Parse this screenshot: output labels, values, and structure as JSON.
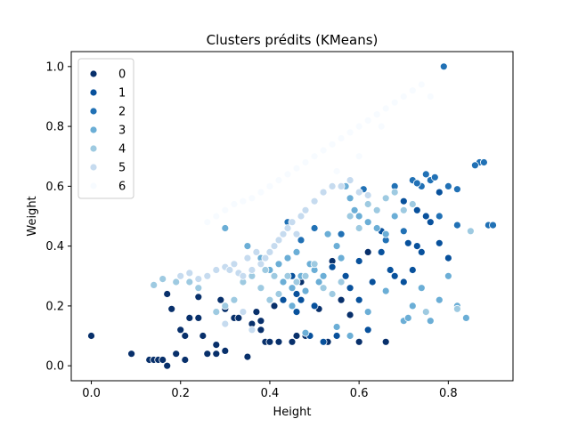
{
  "chart_data": {
    "type": "scatter",
    "title": "Clusters prédits (KMeans)",
    "xlabel": "Height",
    "ylabel": "Weight",
    "xlim": [
      -0.045,
      0.945
    ],
    "ylim": [
      -0.05,
      1.05
    ],
    "xticks": [
      0.0,
      0.2,
      0.4,
      0.6,
      0.8
    ],
    "yticks": [
      0.0,
      0.2,
      0.4,
      0.6,
      0.8,
      1.0
    ],
    "xtick_labels": [
      "0.0",
      "0.2",
      "0.4",
      "0.6",
      "0.8"
    ],
    "ytick_labels": [
      "0.0",
      "0.2",
      "0.4",
      "0.6",
      "0.8",
      "1.0"
    ],
    "grid": false,
    "legend_position": "top-left",
    "series": [
      {
        "name": "0",
        "color": "#08306b",
        "x": [
          0.0,
          0.09,
          0.13,
          0.14,
          0.15,
          0.16,
          0.17,
          0.17,
          0.18,
          0.19,
          0.2,
          0.21,
          0.21,
          0.22,
          0.24,
          0.25,
          0.26,
          0.28,
          0.28,
          0.29,
          0.3,
          0.32,
          0.33,
          0.35,
          0.36,
          0.37,
          0.38,
          0.38,
          0.39,
          0.4,
          0.41,
          0.42,
          0.45,
          0.46,
          0.47,
          0.48,
          0.5,
          0.51,
          0.53,
          0.54,
          0.56,
          0.58,
          0.6,
          0.62,
          0.66,
          0.24,
          0.3,
          0.45
        ],
        "y": [
          0.1,
          0.04,
          0.02,
          0.02,
          0.02,
          0.02,
          0.0,
          0.24,
          0.19,
          0.04,
          0.12,
          0.1,
          0.02,
          0.16,
          0.16,
          0.1,
          0.04,
          0.07,
          0.04,
          0.22,
          0.19,
          0.16,
          0.16,
          0.03,
          0.14,
          0.18,
          0.15,
          0.12,
          0.08,
          0.08,
          0.2,
          0.08,
          0.08,
          0.1,
          0.28,
          0.1,
          0.32,
          0.19,
          0.08,
          0.35,
          0.22,
          0.17,
          0.08,
          0.38,
          0.08,
          0.23,
          0.05,
          0.26
        ]
      },
      {
        "name": "1",
        "color": "#08519c",
        "x": [
          0.43,
          0.45,
          0.46,
          0.47,
          0.49,
          0.5,
          0.52,
          0.55,
          0.57,
          0.58,
          0.6,
          0.62,
          0.63,
          0.65,
          0.67,
          0.68,
          0.7,
          0.72,
          0.73,
          0.74,
          0.75,
          0.76,
          0.78,
          0.8,
          0.52,
          0.6,
          0.65,
          0.7,
          0.74,
          0.78,
          0.46,
          0.54,
          0.71,
          0.73
        ],
        "y": [
          0.22,
          0.3,
          0.24,
          0.22,
          0.1,
          0.2,
          0.08,
          0.1,
          0.3,
          0.26,
          0.35,
          0.12,
          0.28,
          0.38,
          0.32,
          0.3,
          0.28,
          0.32,
          0.4,
          0.38,
          0.5,
          0.48,
          0.41,
          0.36,
          0.3,
          0.22,
          0.45,
          0.55,
          0.6,
          0.58,
          0.18,
          0.33,
          0.41,
          0.52
        ]
      },
      {
        "name": "2",
        "color": "#2171b5",
        "x": [
          0.79,
          0.72,
          0.74,
          0.75,
          0.76,
          0.77,
          0.8,
          0.82,
          0.86,
          0.87,
          0.88,
          0.89,
          0.9,
          0.86,
          0.82,
          0.78,
          0.7,
          0.66,
          0.62,
          0.56,
          0.5,
          0.47,
          0.44,
          0.61,
          0.68,
          0.73
        ],
        "y": [
          1.0,
          0.62,
          0.6,
          0.64,
          0.62,
          0.63,
          0.6,
          0.59,
          0.67,
          0.68,
          0.68,
          0.47,
          0.47,
          0.67,
          0.47,
          0.5,
          0.45,
          0.42,
          0.54,
          0.44,
          0.46,
          0.42,
          0.48,
          0.59,
          0.6,
          0.61
        ]
      },
      {
        "name": "3",
        "color": "#6baed6",
        "x": [
          0.3,
          0.35,
          0.38,
          0.4,
          0.42,
          0.43,
          0.44,
          0.45,
          0.46,
          0.47,
          0.48,
          0.49,
          0.5,
          0.51,
          0.52,
          0.53,
          0.55,
          0.56,
          0.57,
          0.58,
          0.59,
          0.6,
          0.62,
          0.64,
          0.66,
          0.68,
          0.7,
          0.71,
          0.72,
          0.74,
          0.76,
          0.78,
          0.8,
          0.82,
          0.84,
          0.58,
          0.62,
          0.66,
          0.55,
          0.48,
          0.45
        ],
        "y": [
          0.46,
          0.4,
          0.36,
          0.32,
          0.34,
          0.28,
          0.36,
          0.26,
          0.38,
          0.3,
          0.25,
          0.34,
          0.32,
          0.28,
          0.3,
          0.44,
          0.4,
          0.36,
          0.6,
          0.56,
          0.52,
          0.5,
          0.48,
          0.46,
          0.44,
          0.5,
          0.15,
          0.16,
          0.2,
          0.26,
          0.15,
          0.22,
          0.3,
          0.2,
          0.16,
          0.1,
          0.18,
          0.25,
          0.13,
          0.11,
          0.2
        ]
      },
      {
        "name": "4",
        "color": "#9ecae1",
        "x": [
          0.14,
          0.16,
          0.19,
          0.2,
          0.22,
          0.24,
          0.26,
          0.28,
          0.3,
          0.32,
          0.34,
          0.36,
          0.38,
          0.39,
          0.4,
          0.41,
          0.42,
          0.44,
          0.46,
          0.48,
          0.5,
          0.52,
          0.54,
          0.56,
          0.58,
          0.6,
          0.62,
          0.64,
          0.66,
          0.68,
          0.7,
          0.72,
          0.75,
          0.82,
          0.85
        ],
        "y": [
          0.27,
          0.29,
          0.28,
          0.3,
          0.28,
          0.26,
          0.3,
          0.18,
          0.2,
          0.22,
          0.28,
          0.3,
          0.26,
          0.32,
          0.22,
          0.3,
          0.24,
          0.3,
          0.28,
          0.3,
          0.34,
          0.26,
          0.24,
          0.28,
          0.5,
          0.46,
          0.54,
          0.52,
          0.56,
          0.58,
          0.52,
          0.54,
          0.18,
          0.19,
          0.45
        ]
      },
      {
        "name": "5",
        "color": "#c6dbef",
        "x": [
          0.2,
          0.22,
          0.24,
          0.26,
          0.28,
          0.3,
          0.31,
          0.32,
          0.33,
          0.34,
          0.35,
          0.36,
          0.37,
          0.38,
          0.39,
          0.4,
          0.41,
          0.42,
          0.43,
          0.44,
          0.45,
          0.46,
          0.47,
          0.48,
          0.5,
          0.52,
          0.54,
          0.56,
          0.58,
          0.6,
          0.62,
          0.36,
          0.34,
          0.3
        ],
        "y": [
          0.3,
          0.31,
          0.29,
          0.3,
          0.32,
          0.33,
          0.32,
          0.34,
          0.31,
          0.3,
          0.36,
          0.32,
          0.38,
          0.34,
          0.36,
          0.38,
          0.4,
          0.42,
          0.44,
          0.46,
          0.48,
          0.44,
          0.5,
          0.52,
          0.55,
          0.58,
          0.6,
          0.6,
          0.62,
          0.58,
          0.57,
          0.12,
          0.18,
          0.14
        ]
      },
      {
        "name": "6",
        "color": "#f7fbff",
        "x": [
          0.26,
          0.28,
          0.3,
          0.32,
          0.34,
          0.36,
          0.38,
          0.4,
          0.42,
          0.44,
          0.46,
          0.48,
          0.5,
          0.52,
          0.54,
          0.56,
          0.58,
          0.6,
          0.62,
          0.64,
          0.66,
          0.68,
          0.7,
          0.72,
          0.74,
          0.76,
          0.65,
          0.6,
          0.55
        ],
        "y": [
          0.48,
          0.5,
          0.52,
          0.54,
          0.55,
          0.56,
          0.58,
          0.6,
          0.62,
          0.64,
          0.66,
          0.68,
          0.7,
          0.72,
          0.74,
          0.76,
          0.78,
          0.8,
          0.82,
          0.84,
          0.86,
          0.88,
          0.9,
          0.92,
          0.94,
          0.9,
          0.8,
          0.7,
          0.65
        ]
      }
    ]
  }
}
